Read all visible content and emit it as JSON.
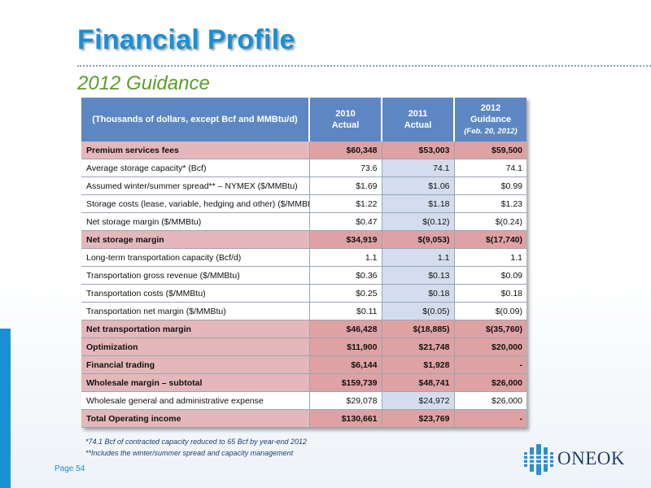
{
  "title": "Financial Profile",
  "subtitle": "2012 Guidance",
  "table": {
    "header": {
      "label": "(Thousands of dollars, except Bcf and MMBtu/d)",
      "col1_line1": "2010",
      "col1_line2": "Actual",
      "col2_line1": "2011",
      "col2_line2": "Actual",
      "col3_line1": "2012",
      "col3_line2": "Guidance",
      "col3_line3": "(Feb. 20, 2012)"
    },
    "rows": [
      {
        "label": "Premium services fees",
        "v2010": "$60,348",
        "v2011": "$53,003",
        "v2012": "$59,500",
        "highlight": true
      },
      {
        "label": "Average storage capacity* (Bcf)",
        "v2010": "73.6",
        "v2011": "74.1",
        "v2012": "74.1",
        "highlight": false
      },
      {
        "label": "Assumed winter/summer spread** – NYMEX ($/MMBtu)",
        "v2010": "$1.69",
        "v2011": "$1.06",
        "v2012": "$0.99",
        "highlight": false
      },
      {
        "label": "Storage costs (lease, variable, hedging and other) ($/MMBtu)",
        "v2010": "$1.22",
        "v2011": "$1.18",
        "v2012": "$1.23",
        "highlight": false
      },
      {
        "label": "Net storage margin ($/MMBtu)",
        "v2010": "$0.47",
        "v2011": "$(0.12)",
        "v2012": "$(0.24)",
        "highlight": false
      },
      {
        "label": "Net storage margin",
        "v2010": "$34,919",
        "v2011": "$(9,053)",
        "v2012": "$(17,740)",
        "highlight": true
      },
      {
        "label": "Long-term transportation capacity (Bcf/d)",
        "v2010": "1.1",
        "v2011": "1.1",
        "v2012": "1.1",
        "highlight": false
      },
      {
        "label": "Transportation gross revenue ($/MMBtu)",
        "v2010": "$0.36",
        "v2011": "$0.13",
        "v2012": "$0.09",
        "highlight": false
      },
      {
        "label": "Transportation costs ($/MMBtu)",
        "v2010": "$0.25",
        "v2011": "$0.18",
        "v2012": "$0.18",
        "highlight": false
      },
      {
        "label": "Transportation net margin ($/MMBtu)",
        "v2010": "$0.11",
        "v2011": "$(0.05)",
        "v2012": "$(0.09)",
        "highlight": false
      },
      {
        "label": "Net transportation margin",
        "v2010": "$46,428",
        "v2011": "$(18,885)",
        "v2012": "$(35,760)",
        "highlight": true
      },
      {
        "label": "Optimization",
        "v2010": "$11,900",
        "v2011": "$21,748",
        "v2012": "$20,000",
        "highlight": true
      },
      {
        "label": "Financial trading",
        "v2010": "$6,144",
        "v2011": "$1,928",
        "v2012": "-",
        "highlight": true
      },
      {
        "label": "Wholesale margin – subtotal",
        "v2010": "$159,739",
        "v2011": "$48,741",
        "v2012": "$26,000",
        "highlight": true
      },
      {
        "label": "Wholesale general and administrative expense",
        "v2010": "$29,078",
        "v2011": "$24,972",
        "v2012": "$26,000",
        "highlight": false
      },
      {
        "label": "Total Operating income",
        "v2010": "$130,661",
        "v2011": "$23,769",
        "v2012": "-",
        "highlight": true
      }
    ]
  },
  "footnotes": {
    "note1": "*74.1 Bcf of contracted capacity reduced to 65 Bcf by year-end 2012",
    "note2": "**Includes the winter/summer spread and capacity management"
  },
  "page_label": "Page 54",
  "logo_text": "ONEOK",
  "colors": {
    "title_blue": "#1b8fd3",
    "subtitle_green": "#5a9e2a",
    "header_blue": "#5d87c2",
    "highlight_row": "#dfa2a4",
    "shaded_column": "#d4dded",
    "footnote_navy": "#1b3f76",
    "logo_navy": "#1f3e73"
  }
}
